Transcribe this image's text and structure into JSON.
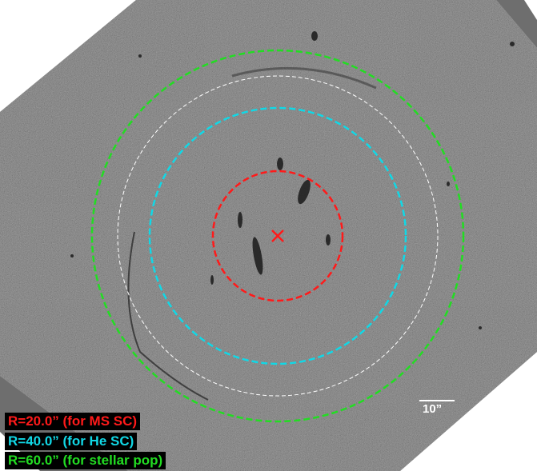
{
  "image": {
    "background_color": "#5a5a5a",
    "edge_color": "#6e6e6e",
    "center_marker": "x-mark"
  },
  "circles": [
    {
      "label": "R=20.0” (for MS SC)",
      "color": "#ff1a1a",
      "radius_arcsec": 20.0
    },
    {
      "label": "R=40.0” (for He SC)",
      "color": "#11d8e6",
      "radius_arcsec": 40.0
    },
    {
      "label": "R=60.0” (for stellar pop)",
      "color": "#22dd22",
      "radius_arcsec": 60.0
    },
    {
      "label": "",
      "color": "#ffffff",
      "radius_arcsec": 50.0
    }
  ],
  "scale_bar": {
    "label": "10”"
  },
  "legend": {
    "red": "R=20.0” (for MS SC)",
    "cyan": "R=40.0” (for He SC)",
    "green": "R=60.0” (for stellar pop)"
  }
}
